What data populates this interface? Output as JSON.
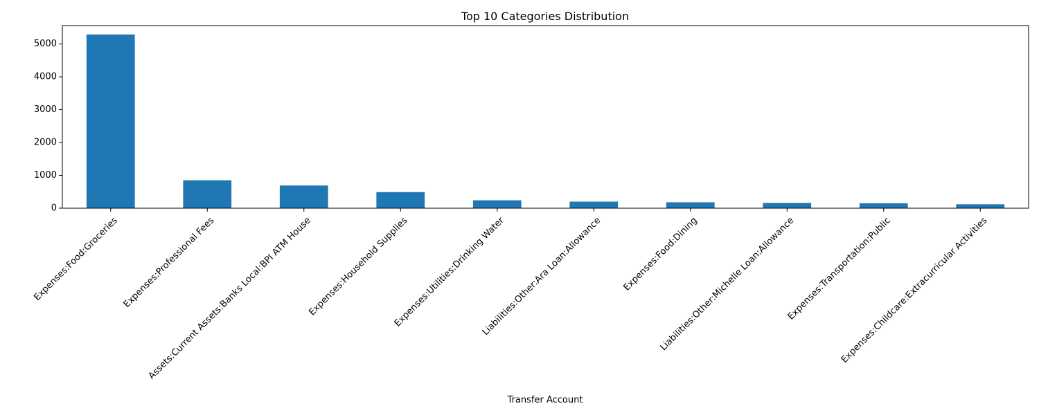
{
  "chart_data": {
    "type": "bar",
    "title": "Top 10 Categories Distribution",
    "xlabel": "Transfer Account",
    "ylabel": "",
    "categories": [
      "Expenses:Food:Groceries",
      "Expenses:Professional Fees",
      "Assets:Current Assets:Banks Local:BPI ATM House",
      "Expenses:Household Supplies",
      "Expenses:Utilities:Drinking Water",
      "Liabilities:Other:Ara Loan:Allowance",
      "Expenses:Food:Dining",
      "Liabilities:Other:Michelle Loan:Allowance",
      "Expenses:Transportation:Public",
      "Expenses:Childcare:Extracurricular Activities"
    ],
    "values": [
      5290,
      850,
      690,
      490,
      240,
      200,
      180,
      160,
      150,
      120
    ],
    "ylim": [
      0,
      5560
    ],
    "yticks": [
      0,
      1000,
      2000,
      3000,
      4000,
      5000
    ],
    "bar_color": "#1f77b4",
    "grid": false,
    "legend": "none"
  }
}
